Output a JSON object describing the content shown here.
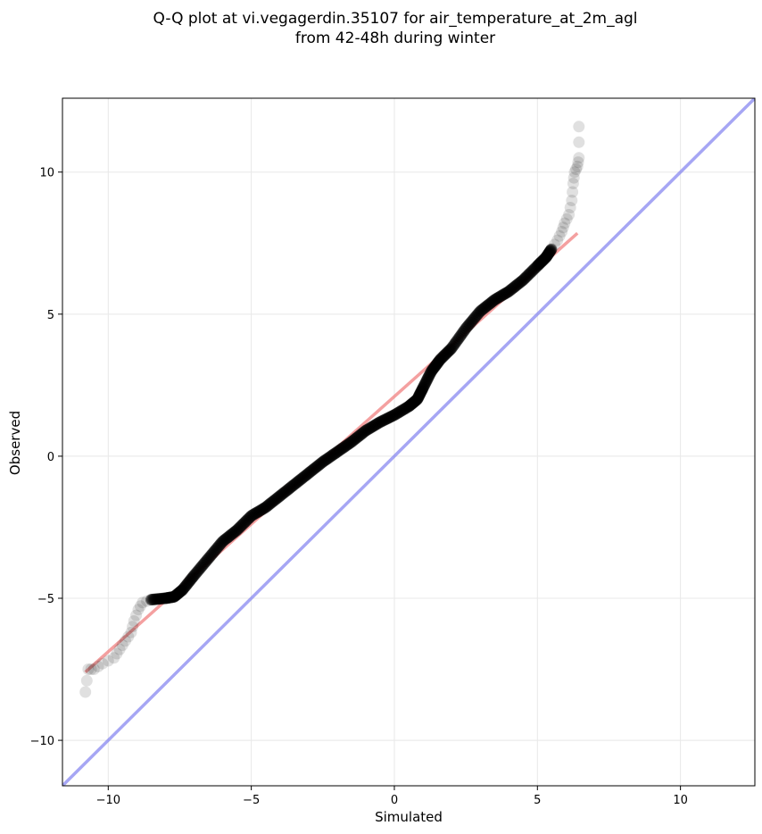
{
  "chart_data": {
    "type": "scatter",
    "title_line1": "Q-Q plot at vi.vegagerdin.35107 for air_temperature_at_2m_agl",
    "title_line2": "from 42-48h during winter",
    "xlabel": "Simulated",
    "ylabel": "Observed",
    "xlim": [
      -11.6,
      12.6
    ],
    "ylim": [
      -11.6,
      12.6
    ],
    "xticks": [
      -10,
      -5,
      0,
      5,
      10
    ],
    "yticks": [
      -10,
      -5,
      0,
      5,
      10
    ],
    "tick_labels": [
      "−10",
      "−5",
      "0",
      "5",
      "10"
    ],
    "grid": true,
    "colors": {
      "points": "#000000",
      "fit_line": "#f08080",
      "identity_line": "#8080f0"
    },
    "fit_line": {
      "x": [
        -10.8,
        6.4
      ],
      "y": [
        -7.6,
        7.85
      ]
    },
    "identity_line": {
      "x": [
        -11.6,
        12.6
      ],
      "y": [
        -11.6,
        12.6
      ]
    },
    "quantile_curve": [
      [
        -10.8,
        -8.3
      ],
      [
        -10.7,
        -7.5
      ],
      [
        -10.5,
        -7.5
      ],
      [
        -10.2,
        -7.3
      ],
      [
        -9.8,
        -7.1
      ],
      [
        -9.6,
        -6.8
      ],
      [
        -9.4,
        -6.5
      ],
      [
        -9.2,
        -6.2
      ],
      [
        -9.1,
        -5.8
      ],
      [
        -8.95,
        -5.4
      ],
      [
        -8.8,
        -5.15
      ],
      [
        -8.5,
        -5.05
      ],
      [
        -8.0,
        -5.0
      ],
      [
        -7.7,
        -4.95
      ],
      [
        -7.4,
        -4.7
      ],
      [
        -7.0,
        -4.2
      ],
      [
        -6.5,
        -3.6
      ],
      [
        -6.0,
        -3.0
      ],
      [
        -5.5,
        -2.6
      ],
      [
        -5.0,
        -2.1
      ],
      [
        -4.5,
        -1.8
      ],
      [
        -4.0,
        -1.4
      ],
      [
        -3.5,
        -1.0
      ],
      [
        -3.0,
        -0.6
      ],
      [
        -2.5,
        -0.2
      ],
      [
        -2.0,
        0.15
      ],
      [
        -1.5,
        0.5
      ],
      [
        -1.0,
        0.9
      ],
      [
        -0.5,
        1.2
      ],
      [
        0.0,
        1.45
      ],
      [
        0.5,
        1.75
      ],
      [
        0.8,
        2.0
      ],
      [
        1.0,
        2.4
      ],
      [
        1.3,
        3.0
      ],
      [
        1.6,
        3.4
      ],
      [
        2.0,
        3.8
      ],
      [
        2.5,
        4.5
      ],
      [
        3.0,
        5.1
      ],
      [
        3.5,
        5.5
      ],
      [
        4.0,
        5.8
      ],
      [
        4.5,
        6.2
      ],
      [
        5.0,
        6.7
      ],
      [
        5.3,
        7.0
      ],
      [
        5.5,
        7.3
      ],
      [
        5.7,
        7.6
      ],
      [
        5.85,
        7.9
      ],
      [
        5.95,
        8.2
      ],
      [
        6.1,
        8.5
      ],
      [
        6.2,
        9.0
      ],
      [
        6.25,
        9.6
      ],
      [
        6.3,
        10.0
      ],
      [
        6.4,
        10.2
      ],
      [
        6.45,
        10.5
      ],
      [
        6.45,
        11.6
      ]
    ]
  }
}
